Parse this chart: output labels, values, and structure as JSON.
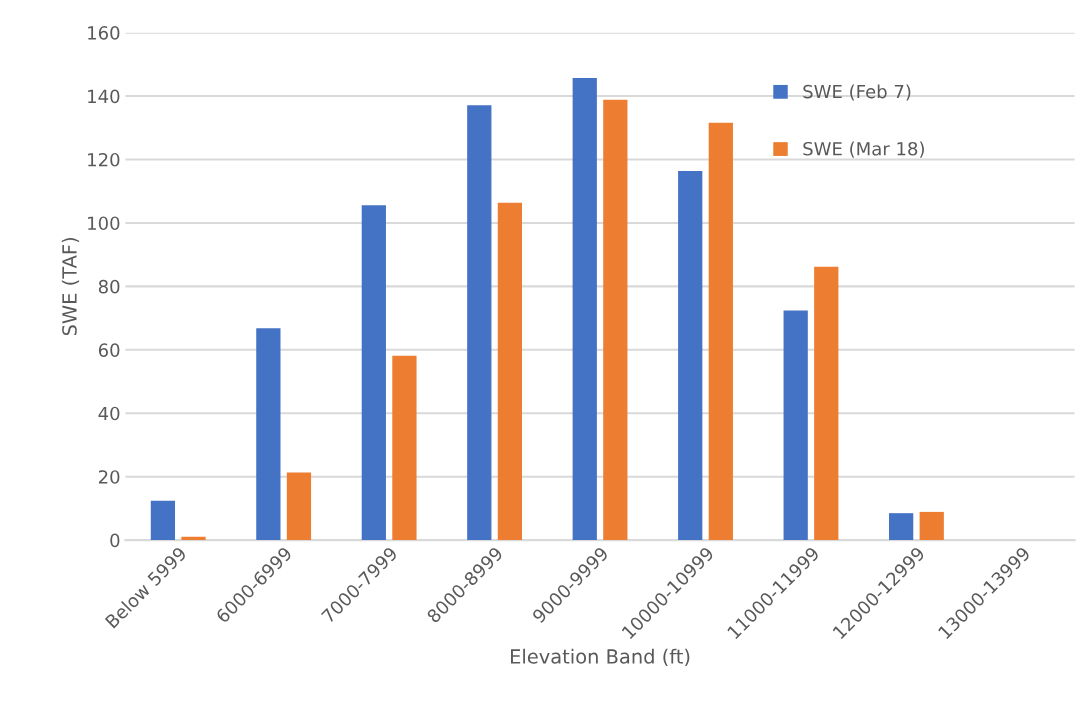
{
  "chart_data": {
    "type": "bar",
    "xlabel": "Elevation Band (ft)",
    "ylabel": "SWE (TAF)",
    "categories": [
      "Below 5999",
      "6000-6999",
      "7000-7999",
      "8000-8999",
      "9000-9999",
      "10000-10999",
      "11000-11999",
      "12000-12999",
      "13000-13999"
    ],
    "series": [
      {
        "name": "SWE (Feb 7)",
        "color": "#4472c4",
        "values": [
          12.4,
          66.8,
          105.6,
          137.1,
          145.7,
          116.4,
          72.4,
          8.5,
          0
        ]
      },
      {
        "name": "SWE (Mar 18)",
        "color": "#ed7d31",
        "values": [
          1.1,
          21.3,
          58.1,
          106.4,
          138.8,
          131.6,
          86.2,
          8.9,
          0
        ]
      }
    ],
    "ylim": [
      0,
      160
    ],
    "yticks": [
      0,
      20,
      40,
      60,
      80,
      100,
      120,
      140,
      160
    ],
    "grid": "y",
    "legend": "top right"
  }
}
